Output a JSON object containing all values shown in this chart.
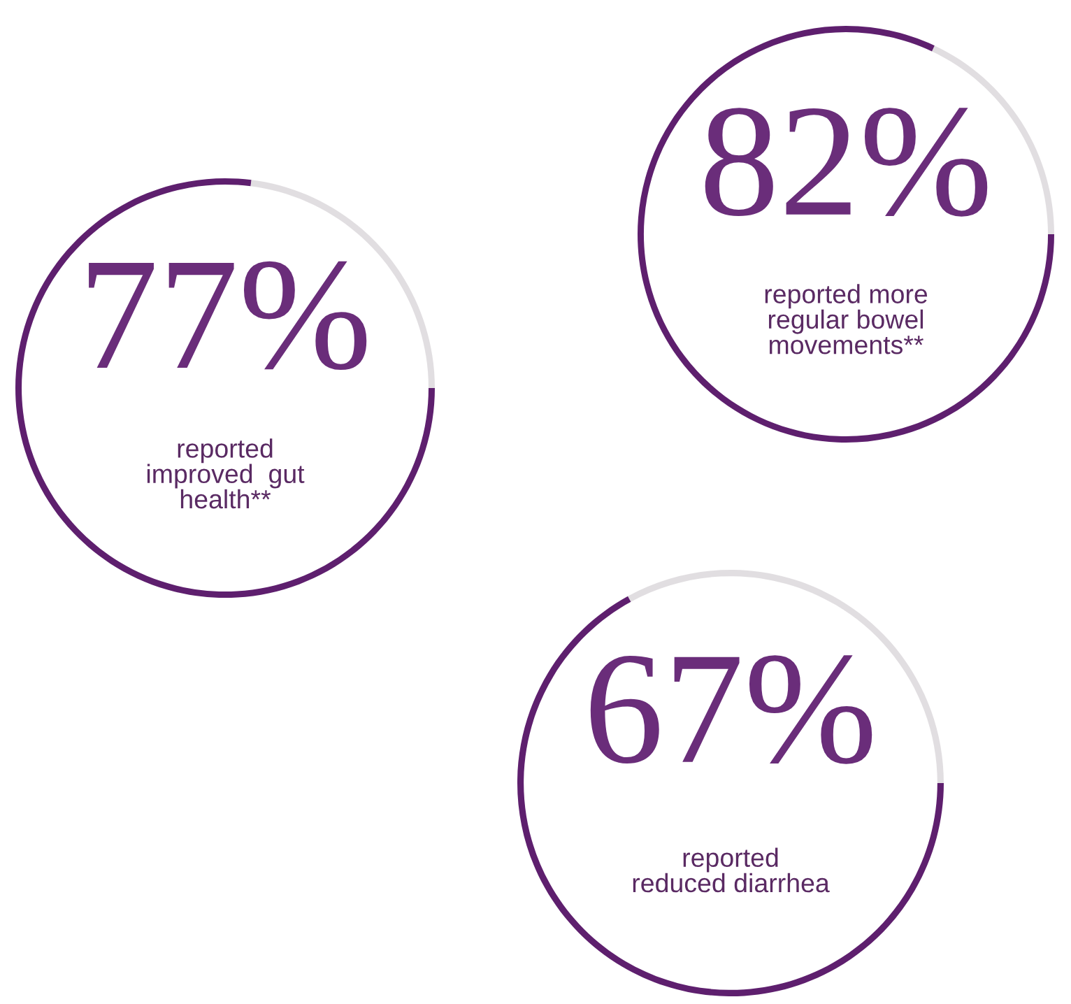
{
  "chart_data": [
    {
      "type": "donut",
      "categories": [
        null,
        null
      ],
      "values": [
        77,
        23
      ],
      "colors": [
        "#5e1f6e",
        "#bdb5bd"
      ],
      "value_labels": [
        "77%",
        null
      ],
      "annotations": [
        "reported\nimproved  gut\nhealth**"
      ]
    },
    {
      "type": "donut",
      "categories": [
        null,
        null
      ],
      "values": [
        82,
        18
      ],
      "colors": [
        "#5e1f6e",
        "#bdb5bd"
      ],
      "value_labels": [
        "82%",
        null
      ],
      "annotations": [
        "reported more\nregular bowel\nmovements**"
      ]
    },
    {
      "type": "donut",
      "categories": [
        null,
        null
      ],
      "values": [
        67,
        33
      ],
      "colors": [
        "#5e1f6e",
        "#bdb5bd"
      ],
      "value_labels": [
        "67%",
        null
      ],
      "annotations": [
        "reported\nreduced diarrhea"
      ]
    }
  ]
}
